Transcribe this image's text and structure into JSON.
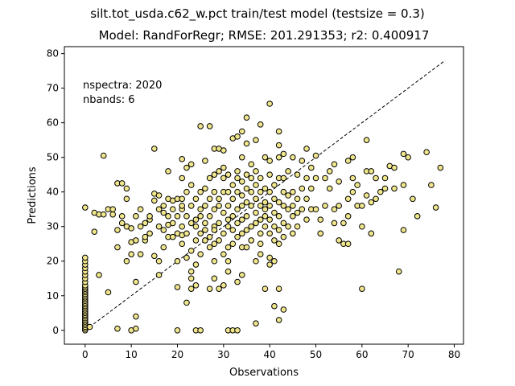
{
  "chart_data": {
    "type": "scatter",
    "suptitle": "silt.tot_usda.c62_w.pct train/test model (testsize = 0.3)",
    "title": "Model: RandForRegr; RMSE: 201.291353; r2: 0.400917",
    "xlabel": "Observations",
    "ylabel": "Predictions",
    "xlim": [
      -4.5,
      82
    ],
    "ylim": [
      -4,
      82
    ],
    "xticks": [
      0,
      10,
      20,
      30,
      40,
      50,
      60,
      70,
      80
    ],
    "yticks": [
      0,
      10,
      20,
      30,
      40,
      50,
      60,
      70,
      80
    ],
    "annotation_lines": [
      "nspectra: 2020",
      "nbands: 6"
    ],
    "reference_line": {
      "x": [
        0,
        78
      ],
      "y": [
        0,
        78
      ],
      "style": "dashed",
      "color": "#000000"
    },
    "marker": {
      "fill": "#f0e68c",
      "edge": "#000000"
    },
    "points": [
      [
        0,
        0
      ],
      [
        0,
        0.5
      ],
      [
        0,
        1
      ],
      [
        0,
        1.5
      ],
      [
        0,
        2
      ],
      [
        0,
        2.5
      ],
      [
        0,
        3
      ],
      [
        0,
        3.5
      ],
      [
        0,
        4
      ],
      [
        0,
        4.5
      ],
      [
        0,
        5
      ],
      [
        0,
        5.5
      ],
      [
        0,
        6
      ],
      [
        0,
        6.5
      ],
      [
        0,
        7
      ],
      [
        0,
        7.5
      ],
      [
        0,
        8
      ],
      [
        0,
        8.5
      ],
      [
        0,
        9
      ],
      [
        0,
        9.5
      ],
      [
        0,
        10
      ],
      [
        0,
        10.5
      ],
      [
        0,
        11
      ],
      [
        0,
        11.5
      ],
      [
        0,
        12
      ],
      [
        0,
        12.5
      ],
      [
        0,
        13
      ],
      [
        0,
        14
      ],
      [
        0,
        15
      ],
      [
        0,
        16
      ],
      [
        0,
        17
      ],
      [
        0,
        18
      ],
      [
        0,
        19
      ],
      [
        0,
        20
      ],
      [
        0,
        21
      ],
      [
        0,
        35.5
      ],
      [
        1,
        1
      ],
      [
        2,
        28.5
      ],
      [
        2,
        34
      ],
      [
        3,
        16
      ],
      [
        3,
        33.5
      ],
      [
        4,
        50.5
      ],
      [
        4,
        33.5
      ],
      [
        5,
        11
      ],
      [
        5,
        35
      ],
      [
        6,
        33.5
      ],
      [
        6,
        35
      ],
      [
        7,
        0.5
      ],
      [
        7,
        24
      ],
      [
        7,
        29
      ],
      [
        7,
        42.5
      ],
      [
        8,
        31
      ],
      [
        8,
        42.5
      ],
      [
        8,
        33
      ],
      [
        9,
        38
      ],
      [
        9,
        20
      ],
      [
        9,
        30
      ],
      [
        9,
        41
      ],
      [
        10,
        0
      ],
      [
        10,
        22
      ],
      [
        10,
        25.5
      ],
      [
        10,
        29.5
      ],
      [
        11,
        0.5
      ],
      [
        11,
        4
      ],
      [
        11,
        14
      ],
      [
        11,
        26
      ],
      [
        11,
        33
      ],
      [
        12,
        30
      ],
      [
        12,
        35
      ],
      [
        12,
        22
      ],
      [
        13,
        26
      ],
      [
        13,
        31
      ],
      [
        13,
        27
      ],
      [
        14,
        32
      ],
      [
        14,
        28
      ],
      [
        14,
        33
      ],
      [
        15,
        52.5
      ],
      [
        15,
        39.5
      ],
      [
        15,
        37.5
      ],
      [
        15,
        21.5
      ],
      [
        16,
        16
      ],
      [
        16,
        20
      ],
      [
        16,
        30
      ],
      [
        16,
        35
      ],
      [
        16,
        39
      ],
      [
        17,
        36
      ],
      [
        17,
        34
      ],
      [
        17,
        29
      ],
      [
        17,
        24
      ],
      [
        18,
        46
      ],
      [
        18,
        38
      ],
      [
        18,
        33
      ],
      [
        18,
        27
      ],
      [
        18,
        30.5
      ],
      [
        19,
        35
      ],
      [
        19,
        27
      ],
      [
        19,
        31
      ],
      [
        19,
        37.5
      ],
      [
        20,
        0
      ],
      [
        20,
        12.5
      ],
      [
        20,
        20
      ],
      [
        20,
        33
      ],
      [
        20,
        38
      ],
      [
        20,
        28
      ],
      [
        21,
        44
      ],
      [
        21,
        49.5
      ],
      [
        21,
        35
      ],
      [
        21,
        30
      ],
      [
        21,
        36
      ],
      [
        21,
        38
      ],
      [
        21,
        27.5
      ],
      [
        21,
        25
      ],
      [
        22,
        21
      ],
      [
        22,
        8
      ],
      [
        22,
        28
      ],
      [
        22,
        33
      ],
      [
        22,
        40
      ],
      [
        22,
        47
      ],
      [
        23,
        15
      ],
      [
        23,
        17
      ],
      [
        23,
        12
      ],
      [
        23,
        23
      ],
      [
        23,
        31
      ],
      [
        23,
        42
      ],
      [
        23,
        48
      ],
      [
        23,
        36
      ],
      [
        24,
        19
      ],
      [
        24,
        13
      ],
      [
        24,
        30
      ],
      [
        24,
        32
      ],
      [
        24,
        38
      ],
      [
        24,
        26
      ],
      [
        24,
        0
      ],
      [
        25,
        0
      ],
      [
        25,
        59
      ],
      [
        25,
        35
      ],
      [
        25,
        28
      ],
      [
        25,
        40
      ],
      [
        25,
        33
      ],
      [
        25,
        22
      ],
      [
        26,
        26
      ],
      [
        26,
        31
      ],
      [
        26,
        41
      ],
      [
        26,
        29
      ],
      [
        26,
        36
      ],
      [
        26,
        49
      ],
      [
        27,
        59
      ],
      [
        27,
        12
      ],
      [
        27,
        24
      ],
      [
        27,
        33
      ],
      [
        27,
        38
      ],
      [
        27,
        27
      ],
      [
        27,
        44
      ],
      [
        28,
        45
      ],
      [
        28,
        52.5
      ],
      [
        28,
        15
      ],
      [
        28,
        20
      ],
      [
        28,
        30
      ],
      [
        28,
        35
      ],
      [
        28,
        40
      ],
      [
        28,
        25
      ],
      [
        28,
        29
      ],
      [
        29,
        46
      ],
      [
        29,
        52.5
      ],
      [
        29,
        38
      ],
      [
        29,
        31
      ],
      [
        29,
        26
      ],
      [
        29,
        12
      ],
      [
        29,
        36
      ],
      [
        30,
        13
      ],
      [
        30,
        44
      ],
      [
        30,
        40
      ],
      [
        30,
        34
      ],
      [
        30,
        28
      ],
      [
        30,
        22
      ],
      [
        30,
        47
      ],
      [
        30,
        52
      ],
      [
        31,
        0
      ],
      [
        31,
        20
      ],
      [
        31,
        24
      ],
      [
        31,
        30
      ],
      [
        31,
        32
      ],
      [
        31,
        36
      ],
      [
        31,
        40
      ],
      [
        31,
        45
      ],
      [
        31,
        17
      ],
      [
        32,
        0
      ],
      [
        32,
        55.5
      ],
      [
        32,
        42
      ],
      [
        32,
        38
      ],
      [
        32,
        33
      ],
      [
        32,
        29
      ],
      [
        32,
        25
      ],
      [
        33,
        0
      ],
      [
        33,
        56
      ],
      [
        33,
        46
      ],
      [
        33,
        44
      ],
      [
        33,
        40
      ],
      [
        33,
        35
      ],
      [
        33,
        31
      ],
      [
        33,
        27
      ],
      [
        33,
        14
      ],
      [
        34,
        57.5
      ],
      [
        34,
        50
      ],
      [
        34,
        43
      ],
      [
        34,
        39
      ],
      [
        34,
        36
      ],
      [
        34,
        32
      ],
      [
        34,
        28
      ],
      [
        34,
        24
      ],
      [
        34,
        16
      ],
      [
        35,
        61.5
      ],
      [
        35,
        45
      ],
      [
        35,
        41
      ],
      [
        35,
        37
      ],
      [
        35,
        33
      ],
      [
        35,
        29
      ],
      [
        35,
        24
      ],
      [
        35,
        54
      ],
      [
        36,
        36
      ],
      [
        36,
        40
      ],
      [
        36,
        44
      ],
      [
        36,
        30
      ],
      [
        36,
        26
      ],
      [
        36,
        48
      ],
      [
        37,
        2
      ],
      [
        37,
        55
      ],
      [
        37,
        38
      ],
      [
        37,
        42
      ],
      [
        37,
        34
      ],
      [
        37,
        31
      ],
      [
        37,
        46
      ],
      [
        37,
        20
      ],
      [
        38,
        59.5
      ],
      [
        38,
        36
      ],
      [
        38,
        40
      ],
      [
        38,
        44
      ],
      [
        38,
        32
      ],
      [
        38,
        28
      ],
      [
        38,
        25
      ],
      [
        38,
        22
      ],
      [
        39,
        12
      ],
      [
        39,
        50
      ],
      [
        39,
        37
      ],
      [
        39,
        41
      ],
      [
        39,
        33
      ],
      [
        39,
        30
      ],
      [
        39,
        35
      ],
      [
        40,
        65.5
      ],
      [
        40,
        49
      ],
      [
        40,
        40
      ],
      [
        40,
        36
      ],
      [
        40,
        32
      ],
      [
        40,
        28
      ],
      [
        40,
        19
      ],
      [
        40,
        45
      ],
      [
        40,
        21
      ],
      [
        41,
        7
      ],
      [
        41,
        38
      ],
      [
        41,
        34
      ],
      [
        41,
        30
      ],
      [
        41,
        42
      ],
      [
        41,
        20
      ],
      [
        41,
        26
      ],
      [
        42,
        57.5
      ],
      [
        42,
        53.5
      ],
      [
        42,
        50
      ],
      [
        42,
        44
      ],
      [
        42,
        37
      ],
      [
        42,
        33
      ],
      [
        42,
        29
      ],
      [
        42,
        25
      ],
      [
        42,
        12
      ],
      [
        42,
        3
      ],
      [
        43,
        6
      ],
      [
        43,
        51
      ],
      [
        43,
        40
      ],
      [
        43,
        36
      ],
      [
        43,
        31
      ],
      [
        43,
        27
      ],
      [
        43,
        44
      ],
      [
        44,
        35
      ],
      [
        44,
        39
      ],
      [
        44,
        30
      ],
      [
        44,
        46
      ],
      [
        45,
        50
      ],
      [
        45,
        36
      ],
      [
        45,
        33
      ],
      [
        45,
        40
      ],
      [
        45,
        28
      ],
      [
        46,
        45
      ],
      [
        46,
        38
      ],
      [
        46,
        34
      ],
      [
        46,
        30
      ],
      [
        47,
        49
      ],
      [
        47,
        35
      ],
      [
        47,
        41
      ],
      [
        48,
        52.5
      ],
      [
        48,
        44
      ],
      [
        48,
        38
      ],
      [
        48,
        32
      ],
      [
        49,
        47
      ],
      [
        49,
        41
      ],
      [
        49,
        35
      ],
      [
        50,
        50.5
      ],
      [
        50,
        44
      ],
      [
        50,
        35
      ],
      [
        51,
        32
      ],
      [
        51,
        28
      ],
      [
        52,
        44
      ],
      [
        52,
        36
      ],
      [
        53,
        46
      ],
      [
        53,
        41
      ],
      [
        54,
        35
      ],
      [
        54,
        31
      ],
      [
        54,
        48
      ],
      [
        55,
        26
      ],
      [
        55,
        43
      ],
      [
        55,
        36
      ],
      [
        56,
        25
      ],
      [
        56,
        31
      ],
      [
        57,
        38
      ],
      [
        57,
        33
      ],
      [
        57,
        49
      ],
      [
        57,
        25
      ],
      [
        58,
        44
      ],
      [
        58,
        50
      ],
      [
        58,
        40
      ],
      [
        59,
        42
      ],
      [
        59,
        36
      ],
      [
        60,
        30
      ],
      [
        60,
        36
      ],
      [
        60,
        12
      ],
      [
        61,
        39
      ],
      [
        61,
        46
      ],
      [
        61,
        55
      ],
      [
        62,
        46
      ],
      [
        62,
        37
      ],
      [
        62,
        28
      ],
      [
        63,
        44
      ],
      [
        63,
        38
      ],
      [
        64,
        40
      ],
      [
        65,
        41
      ],
      [
        65,
        44
      ],
      [
        66,
        47.5
      ],
      [
        67,
        41
      ],
      [
        67,
        47
      ],
      [
        68,
        17
      ],
      [
        69,
        51
      ],
      [
        69,
        42
      ],
      [
        69,
        29
      ],
      [
        70,
        50
      ],
      [
        71,
        38
      ],
      [
        72,
        33
      ],
      [
        74,
        51.5
      ],
      [
        75,
        42
      ],
      [
        76,
        35.5
      ],
      [
        77,
        47
      ]
    ]
  }
}
